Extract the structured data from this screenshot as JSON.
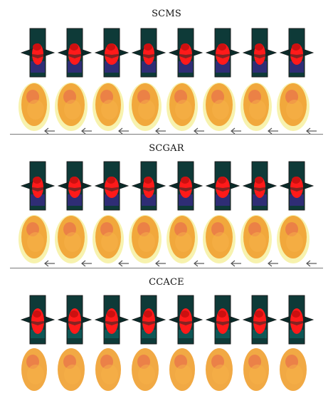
{
  "panels": [
    {
      "title": "SCMS",
      "slice_color": "#ff1a1a",
      "mesh_style": "outlined"
    },
    {
      "title": "SCGAR",
      "slice_color": "#ff1a1a",
      "mesh_style": "outlined"
    },
    {
      "title": "CCACE",
      "slice_color": "#ff1a1a",
      "mesh_style": "solid"
    }
  ],
  "columns": 8,
  "colors": {
    "slice_bg": "#0e3a38",
    "slice_edge": "#1a1a1a",
    "slice_tint": "#3b2a8a",
    "mesh_outer": "#f6f0a0",
    "mesh_inner": "#f0a030",
    "mesh_core": "#e8704a",
    "arrow": "#555555",
    "divider": "#7a7a7a"
  }
}
